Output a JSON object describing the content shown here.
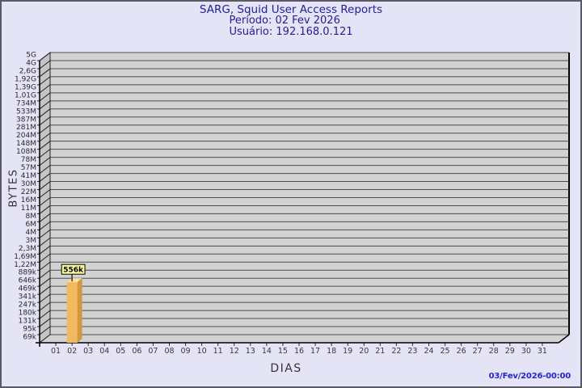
{
  "window": {
    "background": "#e4e4f6",
    "border_color": "#5a5a64"
  },
  "header": {
    "title": "SARG, Squid User Access Reports",
    "period": "Período: 02 Fev 2026",
    "user": "Usuário: 192.168.0.121",
    "text_color": "#1f1f96"
  },
  "footer": {
    "timestamp": "03/Fev/2026-00:00",
    "text_color": "#2525cd"
  },
  "chart_data": {
    "type": "bar",
    "style": "3d-bar",
    "title": "SARG, Squid User Access Reports",
    "subtitle_period": "Período: 02 Fev 2026",
    "subtitle_user": "Usuário: 192.168.0.121",
    "xlabel": "DIAS",
    "ylabel": "BYTES",
    "grid": true,
    "y_scale": "sarg-power-scale",
    "y_tick_labels": [
      "5G",
      "4G",
      "2,6G",
      "1,92G",
      "1,39G",
      "1,01G",
      "734M",
      "533M",
      "387M",
      "281M",
      "204M",
      "148M",
      "108M",
      "78M",
      "57M",
      "41M",
      "30M",
      "22M",
      "16M",
      "11M",
      "8M",
      "6M",
      "4M",
      "3M",
      "2,3M",
      "1,69M",
      "1,22M",
      "889k",
      "646k",
      "469k",
      "341k",
      "247k",
      "180k",
      "131k",
      "95k",
      "69k"
    ],
    "x_tick_labels": [
      "01",
      "02",
      "03",
      "04",
      "05",
      "06",
      "07",
      "08",
      "09",
      "10",
      "11",
      "12",
      "13",
      "14",
      "15",
      "16",
      "17",
      "18",
      "19",
      "20",
      "21",
      "22",
      "23",
      "24",
      "25",
      "26",
      "27",
      "28",
      "29",
      "30",
      "31"
    ],
    "bars": [
      {
        "x_label": "02",
        "value_label": "556k",
        "y_tick_position": 28.5
      }
    ],
    "colors": {
      "plot_bg": "#d2d2d2",
      "wall": "#c5c5c8",
      "grid": "#4d4d4d",
      "axis": "#000000",
      "tick_text": "#2a2a2a",
      "bar_front": "#f2ba60",
      "bar_side": "#d0993e",
      "bar_top": "#f8e0a0",
      "flag_bg": "#ffffa0",
      "flag_border": "#000000",
      "flag_text": "#000000"
    }
  }
}
